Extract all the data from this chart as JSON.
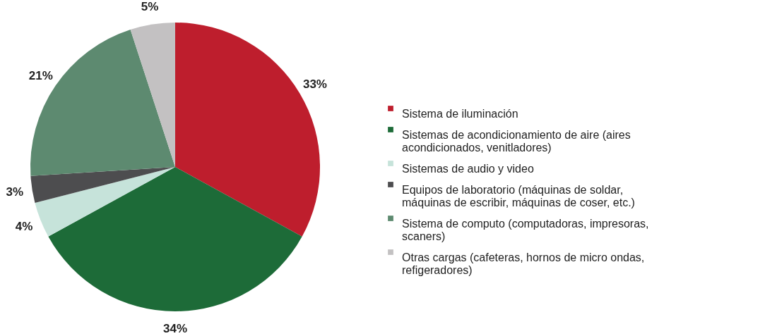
{
  "chart_data": {
    "type": "pie",
    "categories": [
      "Sistema de iluminación",
      "Sistemas de acondicionamiento de aire (aires acondicionados, venitladores)",
      "Sistemas de audio y video",
      "Equipos de laboratorio (máquinas de soldar, máquinas de escribir, máquinas de coser, etc.)",
      "Sistema de computo (computadoras, impresoras, scaners)",
      "Otras cargas (cafeteras, hornos de micro ondas, refigeradores)"
    ],
    "values": [
      33,
      34,
      4,
      3,
      21,
      5
    ],
    "value_labels": [
      "33%",
      "34%",
      "4%",
      "3%",
      "21%",
      "5%"
    ],
    "colors": [
      "#be1e2d",
      "#1d6b38",
      "#c6e3da",
      "#4d4d4f",
      "#5d8a70",
      "#c3c1c2"
    ],
    "legend": "right"
  }
}
